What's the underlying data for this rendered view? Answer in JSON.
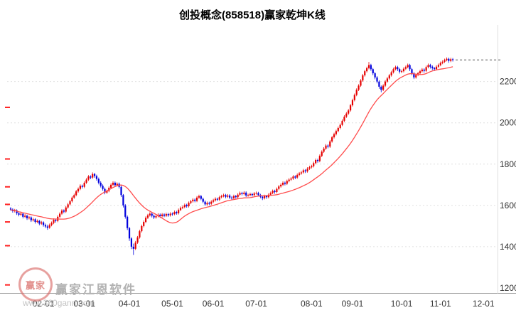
{
  "title": "创投概念(858518)赢家乾坤K线",
  "watermark": {
    "brand": "赢家江恩软件",
    "url": "www.360gann.com",
    "logo_text": "赢家"
  },
  "colors": {
    "up": "#e60000",
    "down": "#0000dd",
    "ma": "#ff4d4d",
    "grid": "#e0e0e0",
    "axis": "#a0a0a0",
    "label": "#333333",
    "last_price_line": "#505050",
    "left_tick": "#ff2222"
  },
  "left_scale_ticks": [
    2075,
    1825,
    1690,
    1605,
    1520,
    1405,
    1215
  ],
  "chart_data": {
    "type": "candlestick",
    "title": "创投概念(858518)赢家乾坤K线",
    "ylim": [
      1200,
      2440
    ],
    "y_ticks": [
      2200,
      2000,
      1800,
      1600,
      1400,
      1200
    ],
    "x_ticks": {
      "labels": [
        "02-01",
        "03-01",
        "04-01",
        "05-01",
        "06-01",
        "07-01",
        "08-01",
        "09-01",
        "10-01",
        "11-01",
        "12-01"
      ],
      "days": [
        16,
        36,
        58,
        79,
        99,
        120,
        147,
        167,
        191,
        210,
        231
      ]
    },
    "ma_period": 24,
    "last_close": 2305,
    "ohlc": [
      [
        1585,
        1592,
        1574,
        1580
      ],
      [
        1580,
        1586,
        1565,
        1572
      ],
      [
        1572,
        1583,
        1566,
        1576
      ],
      [
        1576,
        1581,
        1554,
        1562
      ],
      [
        1562,
        1569,
        1547,
        1555
      ],
      [
        1555,
        1567,
        1549,
        1560
      ],
      [
        1560,
        1565,
        1537,
        1545
      ],
      [
        1545,
        1558,
        1539,
        1550
      ],
      [
        1550,
        1555,
        1530,
        1538
      ],
      [
        1538,
        1549,
        1532,
        1542
      ],
      [
        1542,
        1547,
        1520,
        1528
      ],
      [
        1528,
        1540,
        1522,
        1533
      ],
      [
        1533,
        1538,
        1512,
        1520
      ],
      [
        1520,
        1532,
        1514,
        1525
      ],
      [
        1525,
        1530,
        1504,
        1512
      ],
      [
        1512,
        1525,
        1506,
        1518
      ],
      [
        1518,
        1523,
        1497,
        1505
      ],
      [
        1505,
        1512,
        1490,
        1498
      ],
      [
        1498,
        1507,
        1482,
        1492
      ],
      [
        1492,
        1512,
        1487,
        1505
      ],
      [
        1505,
        1522,
        1499,
        1515
      ],
      [
        1515,
        1537,
        1509,
        1530
      ],
      [
        1530,
        1536,
        1517,
        1525
      ],
      [
        1525,
        1552,
        1519,
        1545
      ],
      [
        1545,
        1567,
        1539,
        1560
      ],
      [
        1560,
        1582,
        1554,
        1575
      ],
      [
        1575,
        1581,
        1562,
        1570
      ],
      [
        1570,
        1597,
        1564,
        1590
      ],
      [
        1590,
        1612,
        1584,
        1605
      ],
      [
        1605,
        1627,
        1599,
        1620
      ],
      [
        1620,
        1645,
        1614,
        1638
      ],
      [
        1638,
        1657,
        1632,
        1650
      ],
      [
        1650,
        1675,
        1644,
        1668
      ],
      [
        1668,
        1687,
        1662,
        1680
      ],
      [
        1680,
        1702,
        1674,
        1695
      ],
      [
        1695,
        1701,
        1682,
        1690
      ],
      [
        1690,
        1717,
        1684,
        1710
      ],
      [
        1710,
        1732,
        1704,
        1725
      ],
      [
        1725,
        1747,
        1719,
        1740
      ],
      [
        1740,
        1746,
        1727,
        1735
      ],
      [
        1735,
        1760,
        1729,
        1752
      ],
      [
        1752,
        1758,
        1734,
        1742
      ],
      [
        1742,
        1749,
        1720,
        1728
      ],
      [
        1728,
        1735,
        1702,
        1710
      ],
      [
        1710,
        1717,
        1687,
        1695
      ],
      [
        1695,
        1702,
        1672,
        1680
      ],
      [
        1680,
        1687,
        1654,
        1662
      ],
      [
        1662,
        1677,
        1656,
        1670
      ],
      [
        1670,
        1692,
        1664,
        1685
      ],
      [
        1685,
        1707,
        1679,
        1700
      ],
      [
        1700,
        1717,
        1694,
        1710
      ],
      [
        1710,
        1716,
        1690,
        1698
      ],
      [
        1698,
        1712,
        1692,
        1705
      ],
      [
        1705,
        1711,
        1682,
        1690
      ],
      [
        1690,
        1695,
        1641,
        1650
      ],
      [
        1650,
        1655,
        1590,
        1600
      ],
      [
        1600,
        1606,
        1536,
        1545
      ],
      [
        1545,
        1551,
        1481,
        1490
      ],
      [
        1490,
        1496,
        1428,
        1440
      ],
      [
        1440,
        1446,
        1388,
        1400
      ],
      [
        1400,
        1415,
        1360,
        1390
      ],
      [
        1390,
        1428,
        1384,
        1420
      ],
      [
        1420,
        1452,
        1414,
        1445
      ],
      [
        1445,
        1482,
        1439,
        1475
      ],
      [
        1475,
        1507,
        1469,
        1500
      ],
      [
        1500,
        1527,
        1494,
        1520
      ],
      [
        1520,
        1547,
        1514,
        1540
      ],
      [
        1540,
        1559,
        1534,
        1552
      ],
      [
        1552,
        1567,
        1546,
        1560
      ],
      [
        1560,
        1566,
        1542,
        1550
      ],
      [
        1550,
        1556,
        1534,
        1542
      ],
      [
        1542,
        1555,
        1536,
        1548
      ],
      [
        1548,
        1562,
        1542,
        1555
      ],
      [
        1555,
        1561,
        1540,
        1548
      ],
      [
        1548,
        1563,
        1542,
        1556
      ],
      [
        1556,
        1562,
        1543,
        1550
      ],
      [
        1550,
        1565,
        1544,
        1558
      ],
      [
        1558,
        1564,
        1545,
        1552
      ],
      [
        1552,
        1567,
        1546,
        1560
      ],
      [
        1560,
        1566,
        1550,
        1558
      ],
      [
        1558,
        1575,
        1552,
        1568
      ],
      [
        1568,
        1574,
        1555,
        1562
      ],
      [
        1562,
        1585,
        1556,
        1578
      ],
      [
        1578,
        1595,
        1572,
        1588
      ],
      [
        1588,
        1599,
        1582,
        1592
      ],
      [
        1592,
        1609,
        1586,
        1602
      ],
      [
        1602,
        1608,
        1589,
        1596
      ],
      [
        1596,
        1619,
        1590,
        1612
      ],
      [
        1612,
        1627,
        1606,
        1620
      ],
      [
        1620,
        1635,
        1614,
        1628
      ],
      [
        1628,
        1634,
        1615,
        1622
      ],
      [
        1622,
        1645,
        1616,
        1638
      ],
      [
        1638,
        1652,
        1632,
        1645
      ],
      [
        1645,
        1651,
        1625,
        1632
      ],
      [
        1632,
        1638,
        1611,
        1618
      ],
      [
        1618,
        1624,
        1598,
        1605
      ],
      [
        1605,
        1619,
        1599,
        1612
      ],
      [
        1612,
        1618,
        1601,
        1608
      ],
      [
        1608,
        1625,
        1602,
        1618
      ],
      [
        1618,
        1632,
        1612,
        1625
      ],
      [
        1625,
        1639,
        1619,
        1632
      ],
      [
        1632,
        1638,
        1621,
        1628
      ],
      [
        1628,
        1647,
        1622,
        1640
      ],
      [
        1640,
        1652,
        1634,
        1645
      ],
      [
        1645,
        1657,
        1639,
        1650
      ],
      [
        1650,
        1656,
        1635,
        1642
      ],
      [
        1642,
        1655,
        1636,
        1648
      ],
      [
        1648,
        1654,
        1631,
        1638
      ],
      [
        1638,
        1645,
        1628,
        1635
      ],
      [
        1635,
        1652,
        1629,
        1645
      ],
      [
        1645,
        1651,
        1633,
        1640
      ],
      [
        1640,
        1659,
        1634,
        1652
      ],
      [
        1652,
        1667,
        1646,
        1660
      ],
      [
        1660,
        1666,
        1648,
        1655
      ],
      [
        1655,
        1669,
        1649,
        1662
      ],
      [
        1662,
        1668,
        1641,
        1648
      ],
      [
        1648,
        1657,
        1642,
        1650
      ],
      [
        1650,
        1662,
        1644,
        1655
      ],
      [
        1655,
        1661,
        1643,
        1650
      ],
      [
        1650,
        1665,
        1644,
        1658
      ],
      [
        1658,
        1667,
        1652,
        1660
      ],
      [
        1660,
        1666,
        1643,
        1650
      ],
      [
        1650,
        1656,
        1635,
        1642
      ],
      [
        1642,
        1648,
        1626,
        1635
      ],
      [
        1635,
        1652,
        1629,
        1645
      ],
      [
        1645,
        1651,
        1632,
        1640
      ],
      [
        1640,
        1659,
        1634,
        1652
      ],
      [
        1652,
        1667,
        1646,
        1660
      ],
      [
        1660,
        1677,
        1654,
        1670
      ],
      [
        1670,
        1676,
        1657,
        1665
      ],
      [
        1665,
        1687,
        1659,
        1680
      ],
      [
        1680,
        1699,
        1674,
        1692
      ],
      [
        1692,
        1707,
        1686,
        1700
      ],
      [
        1700,
        1717,
        1694,
        1710
      ],
      [
        1710,
        1716,
        1697,
        1705
      ],
      [
        1705,
        1725,
        1699,
        1718
      ],
      [
        1718,
        1732,
        1712,
        1725
      ],
      [
        1725,
        1737,
        1719,
        1730
      ],
      [
        1730,
        1747,
        1724,
        1740
      ],
      [
        1740,
        1746,
        1727,
        1735
      ],
      [
        1735,
        1755,
        1729,
        1748
      ],
      [
        1748,
        1762,
        1742,
        1755
      ],
      [
        1755,
        1767,
        1749,
        1760
      ],
      [
        1760,
        1777,
        1754,
        1770
      ],
      [
        1770,
        1776,
        1757,
        1765
      ],
      [
        1765,
        1785,
        1759,
        1778
      ],
      [
        1778,
        1792,
        1772,
        1785
      ],
      [
        1785,
        1797,
        1779,
        1790
      ],
      [
        1790,
        1812,
        1784,
        1805
      ],
      [
        1805,
        1827,
        1799,
        1820
      ],
      [
        1820,
        1826,
        1807,
        1815
      ],
      [
        1815,
        1847,
        1809,
        1840
      ],
      [
        1840,
        1867,
        1834,
        1860
      ],
      [
        1860,
        1882,
        1854,
        1875
      ],
      [
        1875,
        1897,
        1869,
        1890
      ],
      [
        1890,
        1896,
        1877,
        1885
      ],
      [
        1885,
        1917,
        1879,
        1910
      ],
      [
        1910,
        1937,
        1904,
        1930
      ],
      [
        1930,
        1952,
        1924,
        1945
      ],
      [
        1945,
        1967,
        1939,
        1960
      ],
      [
        1960,
        1982,
        1954,
        1975
      ],
      [
        1975,
        1997,
        1969,
        1990
      ],
      [
        1990,
        2017,
        1984,
        2010
      ],
      [
        2010,
        2037,
        2004,
        2030
      ],
      [
        2030,
        2052,
        2024,
        2045
      ],
      [
        2045,
        2067,
        2039,
        2060
      ],
      [
        2060,
        2092,
        2054,
        2085
      ],
      [
        2085,
        2117,
        2079,
        2110
      ],
      [
        2110,
        2142,
        2104,
        2135
      ],
      [
        2135,
        2167,
        2129,
        2160
      ],
      [
        2160,
        2187,
        2154,
        2180
      ],
      [
        2180,
        2212,
        2174,
        2205
      ],
      [
        2205,
        2237,
        2199,
        2230
      ],
      [
        2230,
        2257,
        2224,
        2250
      ],
      [
        2250,
        2272,
        2244,
        2265
      ],
      [
        2265,
        2295,
        2259,
        2280
      ],
      [
        2280,
        2286,
        2252,
        2260
      ],
      [
        2260,
        2266,
        2231,
        2240
      ],
      [
        2240,
        2246,
        2211,
        2220
      ],
      [
        2220,
        2226,
        2191,
        2200
      ],
      [
        2200,
        2206,
        2165,
        2175
      ],
      [
        2175,
        2181,
        2148,
        2160
      ],
      [
        2160,
        2187,
        2154,
        2180
      ],
      [
        2180,
        2207,
        2174,
        2200
      ],
      [
        2200,
        2222,
        2194,
        2215
      ],
      [
        2215,
        2237,
        2209,
        2230
      ],
      [
        2230,
        2252,
        2224,
        2245
      ],
      [
        2245,
        2267,
        2239,
        2260
      ],
      [
        2260,
        2277,
        2254,
        2270
      ],
      [
        2270,
        2276,
        2251,
        2260
      ],
      [
        2260,
        2266,
        2239,
        2248
      ],
      [
        2248,
        2258,
        2241,
        2250
      ],
      [
        2250,
        2269,
        2244,
        2262
      ],
      [
        2262,
        2277,
        2256,
        2270
      ],
      [
        2270,
        2287,
        2264,
        2280
      ],
      [
        2280,
        2286,
        2251,
        2260
      ],
      [
        2260,
        2266,
        2231,
        2240
      ],
      [
        2240,
        2246,
        2212,
        2220
      ],
      [
        2220,
        2239,
        2214,
        2232
      ],
      [
        2232,
        2247,
        2226,
        2240
      ],
      [
        2240,
        2257,
        2234,
        2250
      ],
      [
        2250,
        2265,
        2244,
        2258
      ],
      [
        2258,
        2264,
        2243,
        2252
      ],
      [
        2252,
        2277,
        2246,
        2270
      ],
      [
        2270,
        2287,
        2264,
        2280
      ],
      [
        2280,
        2286,
        2263,
        2272
      ],
      [
        2272,
        2278,
        2256,
        2265
      ],
      [
        2265,
        2271,
        2251,
        2260
      ],
      [
        2260,
        2279,
        2254,
        2272
      ],
      [
        2272,
        2287,
        2266,
        2280
      ],
      [
        2280,
        2297,
        2274,
        2290
      ],
      [
        2290,
        2303,
        2284,
        2296
      ],
      [
        2296,
        2311,
        2290,
        2304
      ],
      [
        2304,
        2317,
        2298,
        2310
      ],
      [
        2310,
        2316,
        2291,
        2300
      ],
      [
        2300,
        2315,
        2294,
        2308
      ],
      [
        2308,
        2314,
        2297,
        2305
      ]
    ]
  }
}
